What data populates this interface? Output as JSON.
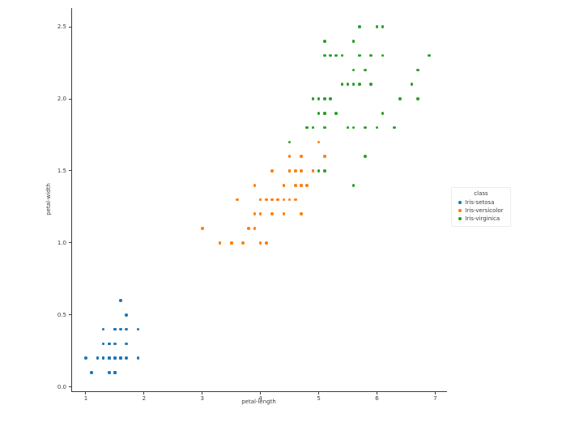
{
  "chart_data": {
    "type": "scatter",
    "title": "",
    "xlabel": "petal-length",
    "ylabel": "petal-width",
    "xlim": [
      0.75,
      7.19
    ],
    "ylim": [
      -0.03,
      2.63
    ],
    "xticks": [
      1,
      2,
      3,
      4,
      5,
      6,
      7
    ],
    "xtick_labels": [
      "1",
      "2",
      "3",
      "4",
      "5",
      "6",
      "7"
    ],
    "yticks": [
      0.0,
      0.5,
      1.0,
      1.5,
      2.0,
      2.5
    ],
    "ytick_labels": [
      "0.0",
      "0.5",
      "1.0",
      "1.5",
      "2.0",
      "2.5"
    ],
    "grid": false,
    "legend": {
      "title": "class",
      "position": "outside-center-right"
    },
    "series": [
      {
        "name": "Iris-setosa",
        "color": "#1f77b4",
        "points": [
          [
            1.4,
            0.2
          ],
          [
            1.4,
            0.2
          ],
          [
            1.3,
            0.2
          ],
          [
            1.5,
            0.2
          ],
          [
            1.4,
            0.2
          ],
          [
            1.7,
            0.4
          ],
          [
            1.4,
            0.3
          ],
          [
            1.5,
            0.2
          ],
          [
            1.4,
            0.2
          ],
          [
            1.5,
            0.1
          ],
          [
            1.5,
            0.2
          ],
          [
            1.6,
            0.2
          ],
          [
            1.4,
            0.1
          ],
          [
            1.1,
            0.1
          ],
          [
            1.2,
            0.2
          ],
          [
            1.5,
            0.4
          ],
          [
            1.3,
            0.4
          ],
          [
            1.4,
            0.3
          ],
          [
            1.7,
            0.3
          ],
          [
            1.5,
            0.3
          ],
          [
            1.7,
            0.2
          ],
          [
            1.5,
            0.4
          ],
          [
            1.0,
            0.2
          ],
          [
            1.7,
            0.5
          ],
          [
            1.9,
            0.2
          ],
          [
            1.6,
            0.2
          ],
          [
            1.6,
            0.4
          ],
          [
            1.5,
            0.2
          ],
          [
            1.4,
            0.2
          ],
          [
            1.6,
            0.2
          ],
          [
            1.6,
            0.2
          ],
          [
            1.5,
            0.4
          ],
          [
            1.5,
            0.1
          ],
          [
            1.4,
            0.2
          ],
          [
            1.5,
            0.1
          ],
          [
            1.2,
            0.2
          ],
          [
            1.3,
            0.2
          ],
          [
            1.5,
            0.1
          ],
          [
            1.3,
            0.2
          ],
          [
            1.5,
            0.2
          ],
          [
            1.3,
            0.3
          ],
          [
            1.3,
            0.3
          ],
          [
            1.3,
            0.2
          ],
          [
            1.6,
            0.6
          ],
          [
            1.9,
            0.4
          ],
          [
            1.4,
            0.3
          ],
          [
            1.6,
            0.2
          ],
          [
            1.4,
            0.2
          ],
          [
            1.5,
            0.2
          ],
          [
            1.4,
            0.2
          ]
        ]
      },
      {
        "name": "Iris-versicolor",
        "color": "#ff7f0e",
        "points": [
          [
            4.7,
            1.4
          ],
          [
            4.5,
            1.5
          ],
          [
            4.9,
            1.5
          ],
          [
            4.0,
            1.3
          ],
          [
            4.6,
            1.5
          ],
          [
            4.5,
            1.3
          ],
          [
            4.7,
            1.6
          ],
          [
            3.3,
            1.0
          ],
          [
            4.6,
            1.3
          ],
          [
            3.9,
            1.4
          ],
          [
            3.5,
            1.0
          ],
          [
            4.2,
            1.5
          ],
          [
            4.0,
            1.0
          ],
          [
            4.7,
            1.4
          ],
          [
            3.6,
            1.3
          ],
          [
            4.4,
            1.4
          ],
          [
            4.5,
            1.5
          ],
          [
            4.1,
            1.0
          ],
          [
            4.5,
            1.5
          ],
          [
            3.9,
            1.1
          ],
          [
            4.8,
            1.8
          ],
          [
            4.0,
            1.3
          ],
          [
            4.9,
            1.5
          ],
          [
            4.7,
            1.2
          ],
          [
            4.3,
            1.3
          ],
          [
            4.4,
            1.4
          ],
          [
            4.8,
            1.4
          ],
          [
            5.0,
            1.7
          ],
          [
            4.5,
            1.5
          ],
          [
            3.5,
            1.0
          ],
          [
            3.8,
            1.1
          ],
          [
            3.7,
            1.0
          ],
          [
            3.9,
            1.2
          ],
          [
            5.1,
            1.6
          ],
          [
            4.5,
            1.5
          ],
          [
            4.5,
            1.6
          ],
          [
            4.7,
            1.5
          ],
          [
            4.4,
            1.3
          ],
          [
            4.1,
            1.3
          ],
          [
            4.0,
            1.3
          ],
          [
            4.4,
            1.2
          ],
          [
            4.6,
            1.4
          ],
          [
            4.0,
            1.2
          ],
          [
            3.3,
            1.0
          ],
          [
            4.2,
            1.3
          ],
          [
            4.2,
            1.2
          ],
          [
            4.2,
            1.3
          ],
          [
            4.3,
            1.3
          ],
          [
            3.0,
            1.1
          ],
          [
            4.1,
            1.3
          ]
        ]
      },
      {
        "name": "Iris-virginica",
        "color": "#2ca02c",
        "points": [
          [
            6.0,
            2.5
          ],
          [
            5.1,
            1.9
          ],
          [
            5.9,
            2.1
          ],
          [
            5.6,
            1.8
          ],
          [
            5.8,
            2.2
          ],
          [
            6.6,
            2.1
          ],
          [
            4.5,
            1.7
          ],
          [
            6.3,
            1.8
          ],
          [
            5.8,
            1.8
          ],
          [
            6.1,
            2.5
          ],
          [
            5.1,
            2.0
          ],
          [
            5.3,
            1.9
          ],
          [
            5.5,
            2.1
          ],
          [
            5.0,
            2.0
          ],
          [
            5.1,
            2.4
          ],
          [
            5.3,
            2.3
          ],
          [
            5.5,
            1.8
          ],
          [
            6.7,
            2.2
          ],
          [
            6.9,
            2.3
          ],
          [
            5.0,
            1.5
          ],
          [
            5.7,
            2.3
          ],
          [
            4.9,
            2.0
          ],
          [
            6.7,
            2.0
          ],
          [
            4.9,
            1.8
          ],
          [
            5.7,
            2.1
          ],
          [
            6.0,
            1.8
          ],
          [
            4.8,
            1.8
          ],
          [
            4.9,
            1.8
          ],
          [
            5.6,
            2.1
          ],
          [
            5.8,
            1.6
          ],
          [
            6.1,
            1.9
          ],
          [
            6.4,
            2.0
          ],
          [
            5.6,
            2.2
          ],
          [
            5.1,
            1.5
          ],
          [
            5.6,
            1.4
          ],
          [
            6.1,
            2.3
          ],
          [
            5.6,
            2.4
          ],
          [
            5.5,
            1.8
          ],
          [
            4.8,
            1.8
          ],
          [
            5.4,
            2.1
          ],
          [
            5.6,
            2.4
          ],
          [
            5.1,
            2.3
          ],
          [
            5.1,
            1.9
          ],
          [
            5.9,
            2.3
          ],
          [
            5.7,
            2.5
          ],
          [
            5.2,
            2.3
          ],
          [
            5.0,
            1.9
          ],
          [
            5.2,
            2.0
          ],
          [
            5.4,
            2.3
          ],
          [
            5.1,
            1.8
          ]
        ]
      }
    ]
  }
}
